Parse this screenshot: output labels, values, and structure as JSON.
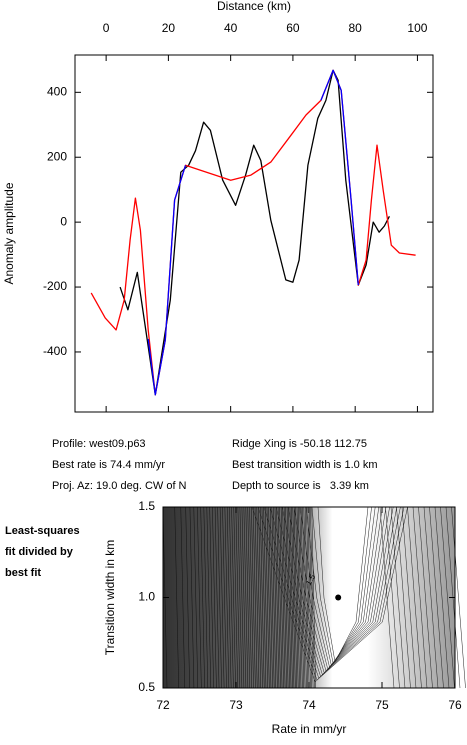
{
  "chart_data": [
    {
      "type": "line",
      "xlabel": "Distance (km)",
      "ylabel": "Anomaly amplitude",
      "xlim": [
        -10,
        105
      ],
      "xticks": [
        0,
        20,
        40,
        60,
        80,
        100
      ],
      "ylim": [
        -585,
        515
      ],
      "yticks": [
        -400,
        -200,
        0,
        200,
        400
      ],
      "series": [
        {
          "color": "#000000",
          "x": [
            4.5,
            7,
            10,
            15.8,
            20.6,
            24,
            26.5,
            28.7,
            31.3,
            33.5,
            37.4,
            41.6,
            44.8,
            47.4,
            49.7,
            52.9,
            57.7,
            60,
            62,
            64.8,
            68,
            70.6,
            72.9,
            74.5,
            77,
            81,
            83.5,
            85.8,
            87.7,
            89.4,
            91
          ],
          "values": [
            -200,
            -270,
            -155,
            -532,
            -240,
            154,
            175,
            220,
            308,
            283,
            130,
            52,
            145,
            237,
            190,
            6,
            -178,
            -185,
            -117,
            175,
            320,
            375,
            468,
            437,
            129,
            -194,
            -132,
            0,
            -31,
            -12,
            18
          ]
        },
        {
          "color": "#ff0000",
          "x": [
            -4.8,
            -0.3,
            3.2,
            5.8,
            7.7,
            9.4,
            11,
            13.5,
            15.8,
            19,
            22,
            25.5,
            30.3,
            40,
            46.5,
            52.9,
            59.4,
            64.2,
            69,
            72.9,
            75.5,
            78.7,
            81,
            83.5,
            85.2,
            87,
            89,
            91.6,
            94.2,
            99.4
          ],
          "values": [
            -218,
            -295,
            -332,
            -240,
            -55,
            74,
            -25,
            -332,
            -532,
            -363,
            68,
            175,
            160,
            129,
            145,
            185,
            268,
            330,
            375,
            468,
            406,
            68,
            -194,
            -117,
            68,
            237,
            98,
            -71,
            -95,
            -102
          ]
        },
        {
          "color": "#0000ff",
          "x": [
            13.5,
            15.8,
            19,
            22,
            25.5,
            null,
            69,
            72.9,
            75.5,
            78.7,
            81
          ],
          "values": [
            -360,
            -532,
            -363,
            68,
            175,
            null,
            375,
            468,
            406,
            68,
            -194
          ]
        }
      ]
    },
    {
      "type": "contour",
      "xlabel": "Rate in mm/yr",
      "ylabel": "Transition width in km",
      "xlim": [
        72,
        76
      ],
      "xticks": [
        72,
        73,
        74,
        75,
        76
      ],
      "ylim": [
        0.5,
        1.5
      ],
      "yticks": [
        0.5,
        {
          "value": 1,
          "label": "1.0"
        },
        1.5
      ],
      "point": [
        74.4,
        1.0
      ],
      "annotation": "1.5",
      "label_lines": [
        "Least-squares",
        "fit divided by",
        "best fit"
      ]
    }
  ],
  "info": {
    "left": [
      "Profile: west09.p63",
      "Best rate is 74.4 mm/yr",
      "Proj. Az: 19.0 deg. CW of N"
    ],
    "right": [
      "Ridge Xing is -50.18 112.75",
      "Best transition width is 1.0 km",
      "Depth to source is   3.39 km"
    ]
  }
}
